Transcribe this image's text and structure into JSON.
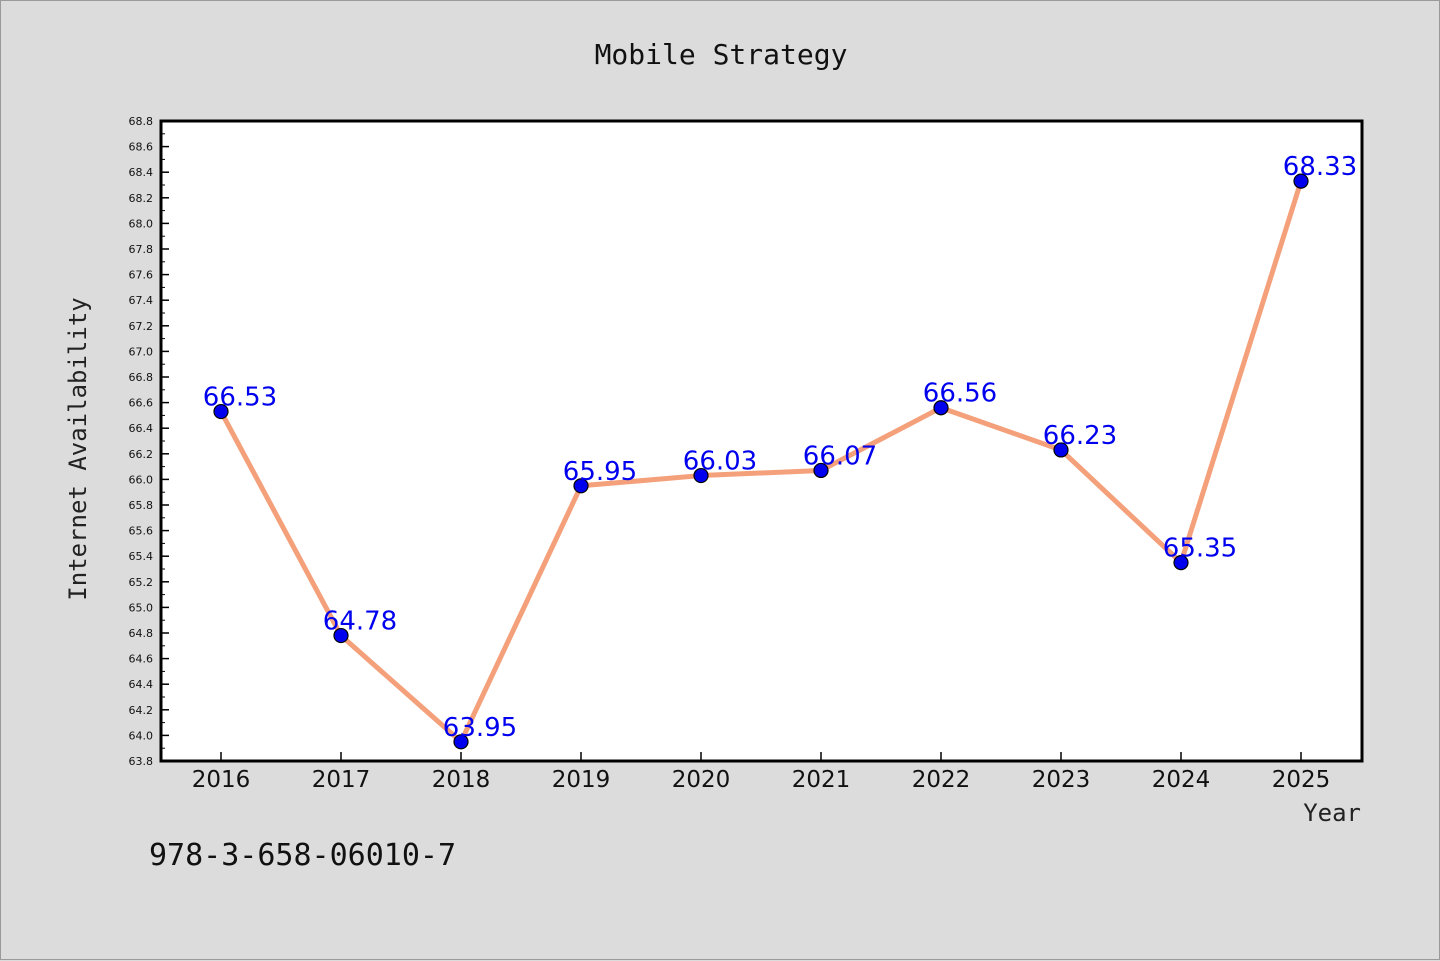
{
  "chart_data": {
    "type": "line",
    "title": "Mobile Strategy",
    "xlabel": "Year",
    "ylabel": "Internet Availability",
    "categories": [
      "2016",
      "2017",
      "2018",
      "2019",
      "2020",
      "2021",
      "2022",
      "2023",
      "2024",
      "2025"
    ],
    "series": [
      {
        "values": [
          66.53,
          64.78,
          63.95,
          65.95,
          66.03,
          66.07,
          66.56,
          66.23,
          65.35,
          68.33
        ],
        "data_labels": [
          "66.53",
          "64.78",
          "63.95",
          "65.95",
          "66.03",
          "66.07",
          "66.56",
          "66.23",
          "65.35",
          "68.33"
        ],
        "line_color": "#f4a07a",
        "marker_color": "#0000ee"
      }
    ],
    "ylim": [
      63.8,
      68.8
    ],
    "yticks": [
      "63.8",
      "64.0",
      "64.2",
      "64.4",
      "64.6",
      "64.8",
      "65.0",
      "65.2",
      "65.4",
      "65.6",
      "65.8",
      "66.0",
      "66.2",
      "66.4",
      "66.6",
      "66.8",
      "67.0",
      "67.2",
      "67.4",
      "67.6",
      "67.8",
      "68.0",
      "68.2",
      "68.4",
      "68.6",
      "68.8"
    ],
    "grid": false,
    "legend": "none"
  },
  "footer": {
    "isbn": "978-3-658-06010-7"
  }
}
